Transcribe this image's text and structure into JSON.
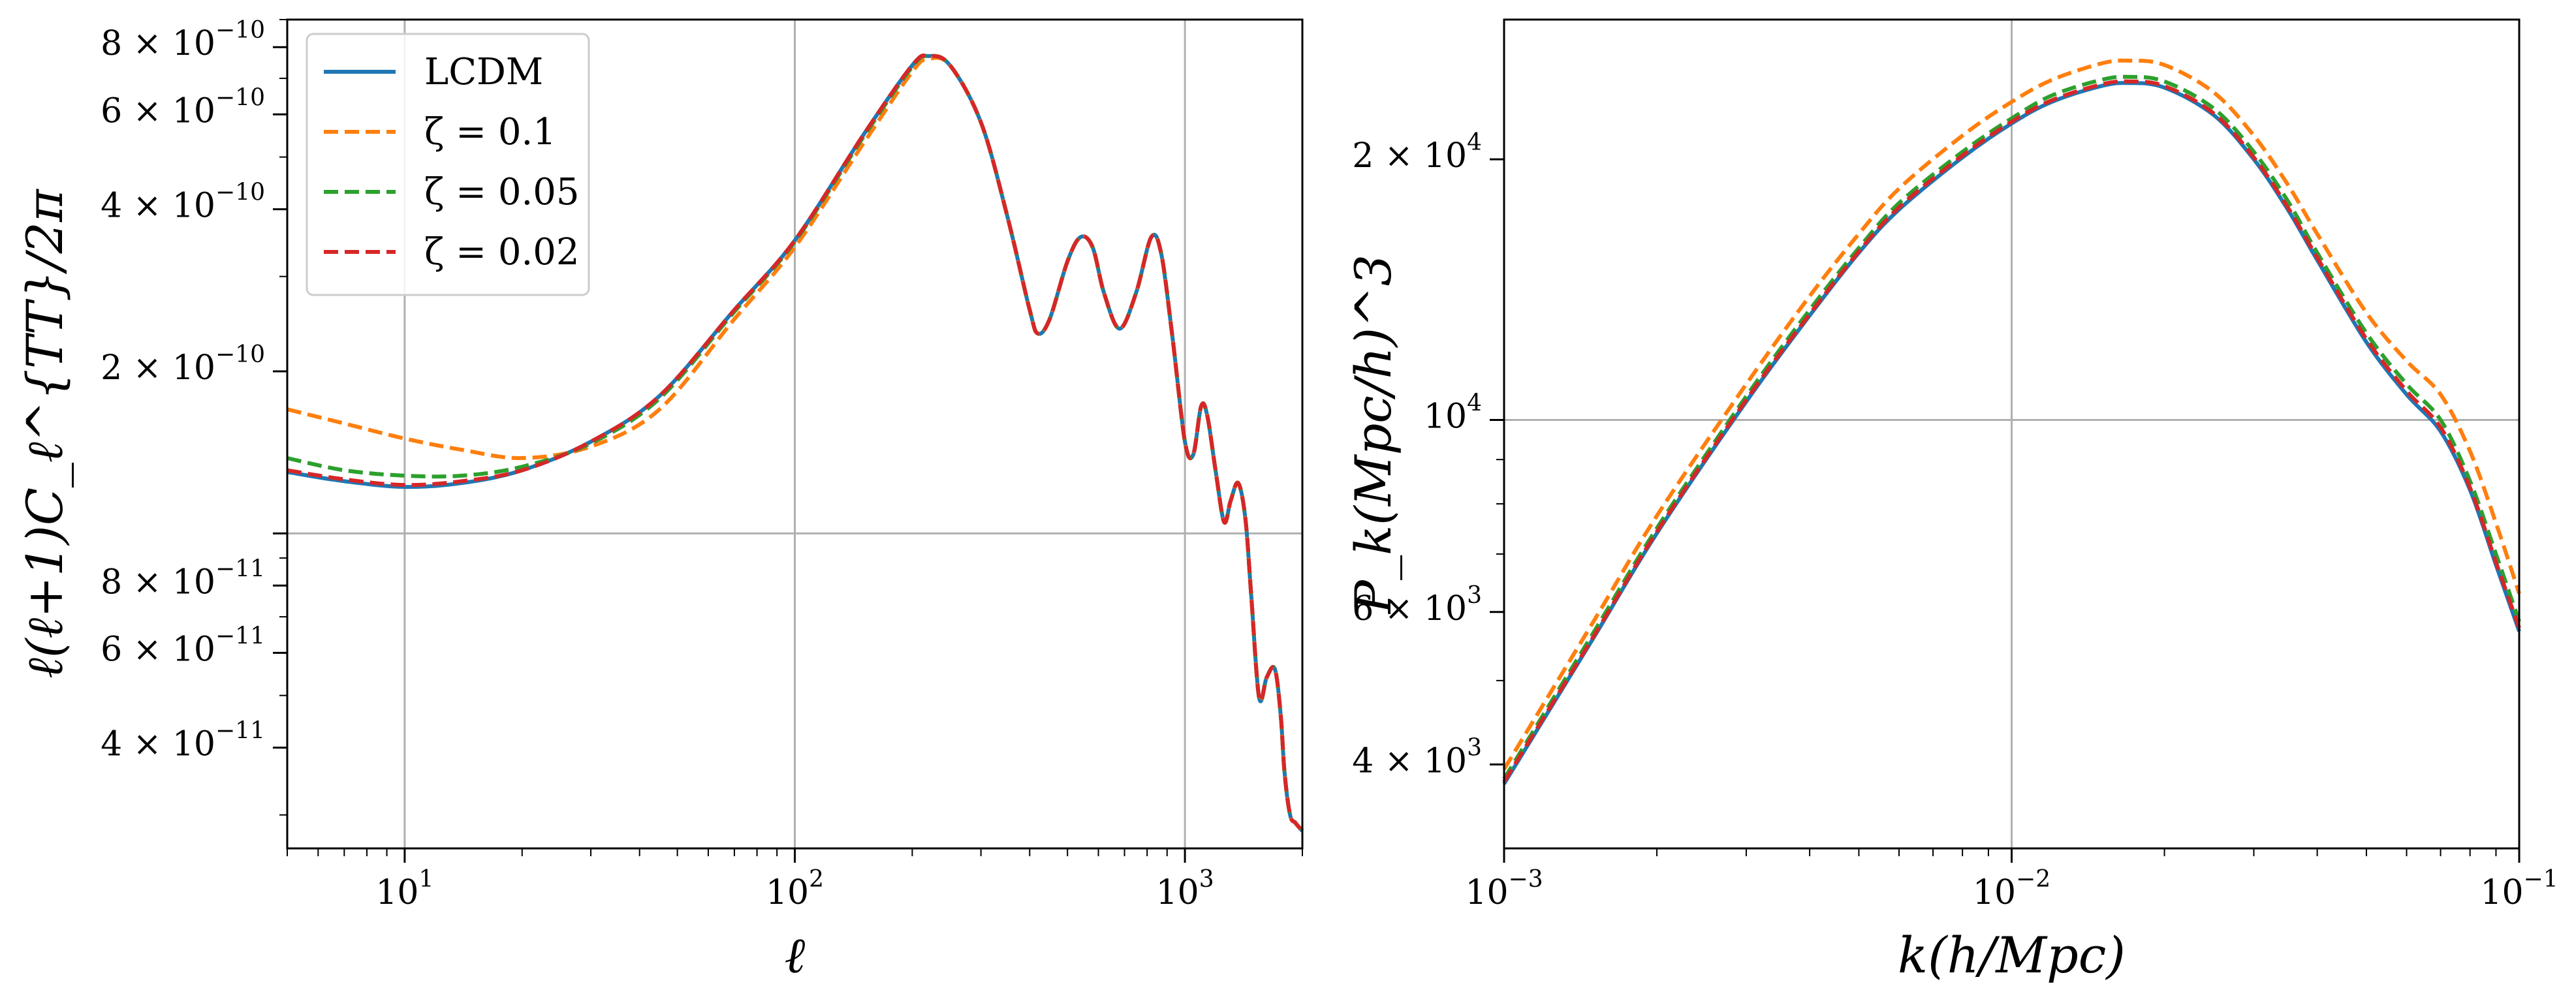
{
  "chart_data": [
    {
      "type": "line",
      "xlabel": "ℓ",
      "ylabel": "ℓ(ℓ+1)C_ℓ^{TT}/2π",
      "x_scale": "log",
      "y_scale": "log",
      "xlim": [
        5,
        2000
      ],
      "ylim": [
        2.6e-11,
        9e-10
      ],
      "grid": true,
      "legend_position": "top-left",
      "xticks": [
        {
          "value": 10,
          "base": "10",
          "exp": "1"
        },
        {
          "value": 100,
          "base": "10",
          "exp": "2"
        },
        {
          "value": 1000,
          "base": "10",
          "exp": "3"
        }
      ],
      "yticks": [
        {
          "value": 8e-10,
          "mant": "8 × 10",
          "exp": "−10"
        },
        {
          "value": 6e-10,
          "mant": "6 × 10",
          "exp": "−10"
        },
        {
          "value": 4e-10,
          "mant": "4 × 10",
          "exp": "−10"
        },
        {
          "value": 2e-10,
          "mant": "2 × 10",
          "exp": "−10"
        },
        {
          "value": 8e-11,
          "mant": "8 × 10",
          "exp": "−11"
        },
        {
          "value": 6e-11,
          "mant": "6 × 10",
          "exp": "−11"
        },
        {
          "value": 4e-11,
          "mant": "4 × 10",
          "exp": "−11"
        }
      ],
      "x": [
        5,
        7,
        10,
        14,
        20,
        30,
        45,
        70,
        100,
        150,
        200,
        220,
        250,
        300,
        350,
        400,
        420,
        450,
        500,
        540,
        580,
        620,
        680,
        750,
        820,
        870,
        930,
        1000,
        1050,
        1100,
        1140,
        1200,
        1260,
        1310,
        1370,
        1430,
        1480,
        1550,
        1620,
        1700,
        1760,
        1800,
        1860,
        1920,
        2000
      ],
      "series": [
        {
          "name": "LCDM",
          "color": "#1f77b4",
          "dash": "solid",
          "values": [
            1.3e-10,
            1.25e-10,
            1.22e-10,
            1.24e-10,
            1.31e-10,
            1.48e-10,
            1.8e-10,
            2.6e-10,
            3.5e-10,
            5.5e-10,
            7.4e-10,
            7.7e-10,
            7.4e-10,
            5.8e-10,
            3.9e-10,
            2.6e-10,
            2.35e-10,
            2.5e-10,
            3.2e-10,
            3.55e-10,
            3.4e-10,
            2.8e-10,
            2.4e-10,
            2.8e-10,
            3.55e-10,
            3.3e-10,
            2.3e-10,
            1.48e-10,
            1.4e-10,
            1.72e-10,
            1.66e-10,
            1.3e-10,
            1.05e-10,
            1.15e-10,
            1.24e-10,
            1.06e-10,
            7.6e-11,
            4.95e-11,
            5.4e-11,
            5.6e-11,
            4.6e-11,
            3.6e-11,
            3e-11,
            2.9e-11,
            2.8e-11
          ]
        },
        {
          "name": "ζ = 0.1",
          "color": "#ff7f0e",
          "dash": "dashed",
          "values": [
            1.7e-10,
            1.6e-10,
            1.5e-10,
            1.43e-10,
            1.38e-10,
            1.45e-10,
            1.7e-10,
            2.5e-10,
            3.4e-10,
            5.3e-10,
            7.2e-10,
            7.6e-10,
            7.4e-10,
            5.8e-10,
            3.9e-10,
            2.6e-10,
            2.35e-10,
            2.5e-10,
            3.2e-10,
            3.55e-10,
            3.4e-10,
            2.8e-10,
            2.4e-10,
            2.8e-10,
            3.55e-10,
            3.3e-10,
            2.3e-10,
            1.48e-10,
            1.4e-10,
            1.72e-10,
            1.66e-10,
            1.3e-10,
            1.05e-10,
            1.15e-10,
            1.24e-10,
            1.06e-10,
            7.6e-11,
            4.95e-11,
            5.4e-11,
            5.6e-11,
            4.6e-11,
            3.6e-11,
            3e-11,
            2.9e-11,
            2.8e-11
          ]
        },
        {
          "name": "ζ = 0.05",
          "color": "#2ca02c",
          "dash": "dashed",
          "values": [
            1.38e-10,
            1.31e-10,
            1.28e-10,
            1.28e-10,
            1.33e-10,
            1.47e-10,
            1.78e-10,
            2.58e-10,
            3.48e-10,
            5.45e-10,
            7.35e-10,
            7.7e-10,
            7.4e-10,
            5.8e-10,
            3.9e-10,
            2.6e-10,
            2.35e-10,
            2.5e-10,
            3.2e-10,
            3.55e-10,
            3.4e-10,
            2.8e-10,
            2.4e-10,
            2.8e-10,
            3.55e-10,
            3.3e-10,
            2.3e-10,
            1.48e-10,
            1.4e-10,
            1.72e-10,
            1.66e-10,
            1.3e-10,
            1.05e-10,
            1.15e-10,
            1.24e-10,
            1.06e-10,
            7.6e-11,
            4.95e-11,
            5.4e-11,
            5.6e-11,
            4.6e-11,
            3.6e-11,
            3e-11,
            2.9e-11,
            2.8e-11
          ]
        },
        {
          "name": "ζ = 0.02",
          "color": "#d62728",
          "dash": "dashed",
          "values": [
            1.31e-10,
            1.26e-10,
            1.23e-10,
            1.25e-10,
            1.31e-10,
            1.48e-10,
            1.8e-10,
            2.6e-10,
            3.5e-10,
            5.5e-10,
            7.4e-10,
            7.7e-10,
            7.4e-10,
            5.8e-10,
            3.9e-10,
            2.6e-10,
            2.35e-10,
            2.5e-10,
            3.2e-10,
            3.55e-10,
            3.4e-10,
            2.8e-10,
            2.4e-10,
            2.8e-10,
            3.55e-10,
            3.3e-10,
            2.3e-10,
            1.48e-10,
            1.4e-10,
            1.72e-10,
            1.66e-10,
            1.3e-10,
            1.05e-10,
            1.15e-10,
            1.24e-10,
            1.06e-10,
            7.6e-11,
            4.95e-11,
            5.4e-11,
            5.6e-11,
            4.6e-11,
            3.6e-11,
            3e-11,
            2.9e-11,
            2.8e-11
          ]
        }
      ]
    },
    {
      "type": "line",
      "xlabel": "k(h/Mpc)",
      "ylabel": "P_k(Mpc/h)^3",
      "x_scale": "log",
      "y_scale": "log",
      "xlim": [
        0.001,
        0.1
      ],
      "ylim": [
        3200,
        29000
      ],
      "grid": true,
      "xticks": [
        {
          "value": 0.001,
          "base": "10",
          "exp": "−3"
        },
        {
          "value": 0.01,
          "base": "10",
          "exp": "−2"
        },
        {
          "value": 0.1,
          "base": "10",
          "exp": "−1"
        }
      ],
      "yticks": [
        {
          "value": 20000,
          "mant": "2 × 10",
          "exp": "4"
        },
        {
          "value": 10000,
          "mant": "10",
          "exp": "4"
        },
        {
          "value": 6000,
          "mant": "6 × 10",
          "exp": "3"
        },
        {
          "value": 4000,
          "mant": "4 × 10",
          "exp": "3"
        }
      ],
      "x": [
        0.001,
        0.0015,
        0.002,
        0.003,
        0.004,
        0.005,
        0.006,
        0.008,
        0.01,
        0.012,
        0.015,
        0.017,
        0.02,
        0.025,
        0.03,
        0.035,
        0.04,
        0.05,
        0.06,
        0.07,
        0.08,
        0.09,
        0.1
      ],
      "series": [
        {
          "name": "LCDM",
          "color": "#1f77b4",
          "dash": "solid",
          "values": [
            3800,
            5600,
            7400,
            10500,
            13200,
            15600,
            17500,
            20100,
            22000,
            23300,
            24300,
            24500,
            24200,
            22500,
            20000,
            17500,
            15300,
            12300,
            10700,
            9700,
            8300,
            6800,
            5700
          ]
        },
        {
          "name": "ζ = 0.1",
          "color": "#ff7f0e",
          "dash": "dashed",
          "values": [
            3950,
            5850,
            7750,
            11000,
            13900,
            16400,
            18500,
            21300,
            23300,
            24700,
            25800,
            26000,
            25700,
            23900,
            21300,
            18700,
            16400,
            13300,
            11700,
            10700,
            9200,
            7600,
            6300
          ]
        },
        {
          "name": "ζ = 0.05",
          "color": "#2ca02c",
          "dash": "dashed",
          "values": [
            3850,
            5680,
            7500,
            10650,
            13400,
            15800,
            17800,
            20400,
            22300,
            23700,
            24700,
            24900,
            24600,
            22900,
            20400,
            17900,
            15600,
            12600,
            11000,
            10000,
            8500,
            7000,
            5850
          ]
        },
        {
          "name": "ζ = 0.02",
          "color": "#d62728",
          "dash": "dashed",
          "values": [
            3820,
            5620,
            7430,
            10550,
            13250,
            15650,
            17600,
            20200,
            22100,
            23400,
            24400,
            24600,
            24300,
            22600,
            20100,
            17600,
            15400,
            12400,
            10800,
            9800,
            8350,
            6850,
            5750
          ]
        }
      ]
    }
  ]
}
